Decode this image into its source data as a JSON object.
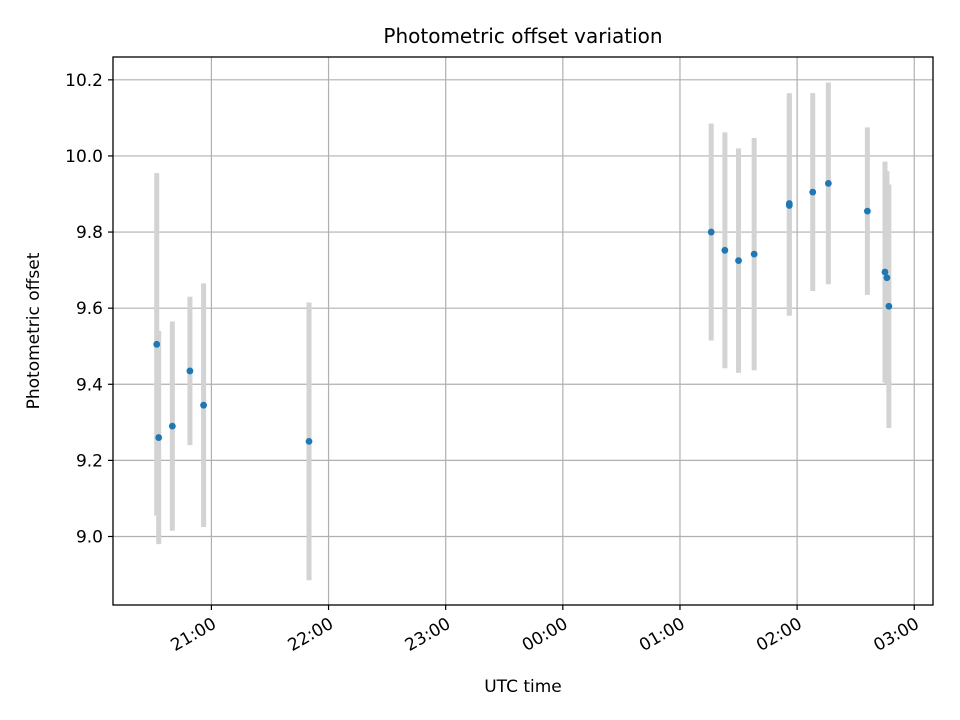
{
  "chart_data": {
    "type": "scatter",
    "title": "Photometric offset variation",
    "xlabel": "UTC time",
    "ylabel": "Photometric offset",
    "x_ticks": [
      "21:00",
      "22:00",
      "23:00",
      "00:00",
      "01:00",
      "02:00",
      "03:00"
    ],
    "x_tick_hours": [
      21,
      22,
      23,
      24,
      25,
      26,
      27
    ],
    "xlim_hours": [
      20.16,
      27.16
    ],
    "y_ticks": [
      "9.0",
      "9.2",
      "9.4",
      "9.6",
      "9.8",
      "10.0",
      "10.2"
    ],
    "y_tick_values": [
      9.0,
      9.2,
      9.4,
      9.6,
      9.8,
      10.0,
      10.2
    ],
    "ylim": [
      8.82,
      10.26
    ],
    "grid": true,
    "marker_color": "#1f77b4",
    "errorbar_color": "#d3d3d3",
    "points": [
      {
        "time": "20:32",
        "y": 9.505,
        "err": 0.45
      },
      {
        "time": "20:33",
        "y": 9.26,
        "err": 0.28
      },
      {
        "time": "20:40",
        "y": 9.29,
        "err": 0.275
      },
      {
        "time": "20:49",
        "y": 9.435,
        "err": 0.195
      },
      {
        "time": "20:56",
        "y": 9.345,
        "err": 0.32
      },
      {
        "time": "21:50",
        "y": 9.25,
        "err": 0.365
      },
      {
        "time": "01:16",
        "y": 9.8,
        "err": 0.285
      },
      {
        "time": "01:23",
        "y": 9.752,
        "err": 0.31
      },
      {
        "time": "01:30",
        "y": 9.725,
        "err": 0.295
      },
      {
        "time": "01:38",
        "y": 9.742,
        "err": 0.305
      },
      {
        "time": "01:56",
        "y": 9.875,
        "err": 0.29
      },
      {
        "time": "01:56",
        "y": 9.87,
        "err": 0.29
      },
      {
        "time": "02:08",
        "y": 9.905,
        "err": 0.26
      },
      {
        "time": "02:16",
        "y": 9.928,
        "err": 0.265
      },
      {
        "time": "02:36",
        "y": 9.855,
        "err": 0.22
      },
      {
        "time": "02:45",
        "y": 9.695,
        "err": 0.29
      },
      {
        "time": "02:46",
        "y": 9.68,
        "err": 0.28
      },
      {
        "time": "02:47",
        "y": 9.605,
        "err": 0.32
      }
    ]
  }
}
